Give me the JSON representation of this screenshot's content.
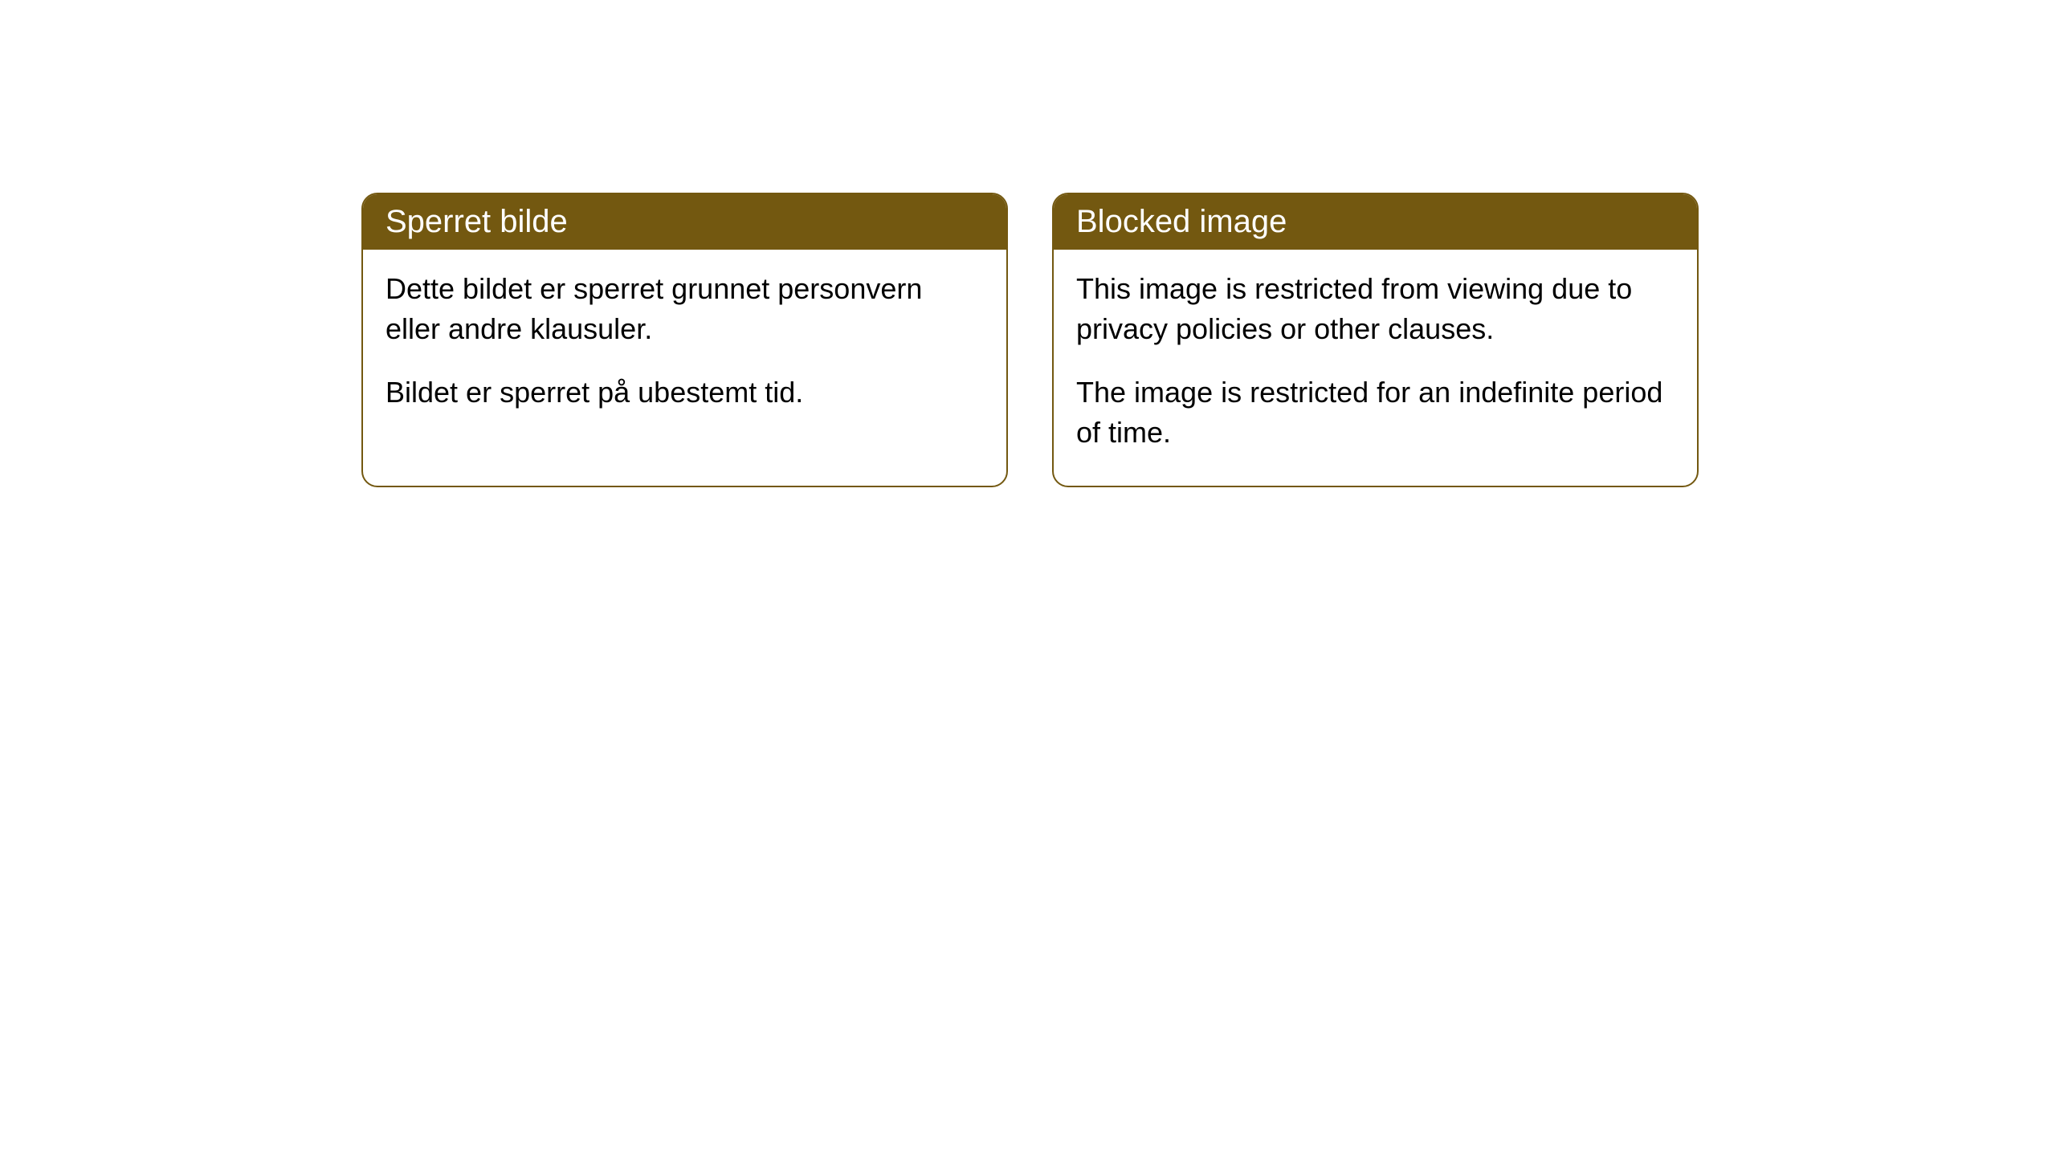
{
  "cards": [
    {
      "title": "Sperret bilde",
      "paragraph1": "Dette bildet er sperret grunnet personvern eller andre klausuler.",
      "paragraph2": "Bildet er sperret på ubestemt tid."
    },
    {
      "title": "Blocked image",
      "paragraph1": "This image is restricted from viewing due to privacy policies or other clauses.",
      "paragraph2": "The image is restricted for an indefinite period of time."
    }
  ],
  "styling": {
    "header_background": "#735810",
    "header_text_color": "#ffffff",
    "border_color": "#735810",
    "body_background": "#ffffff",
    "body_text_color": "#000000",
    "page_background": "#ffffff",
    "border_radius": 20,
    "title_fontsize": 40,
    "body_fontsize": 36
  }
}
